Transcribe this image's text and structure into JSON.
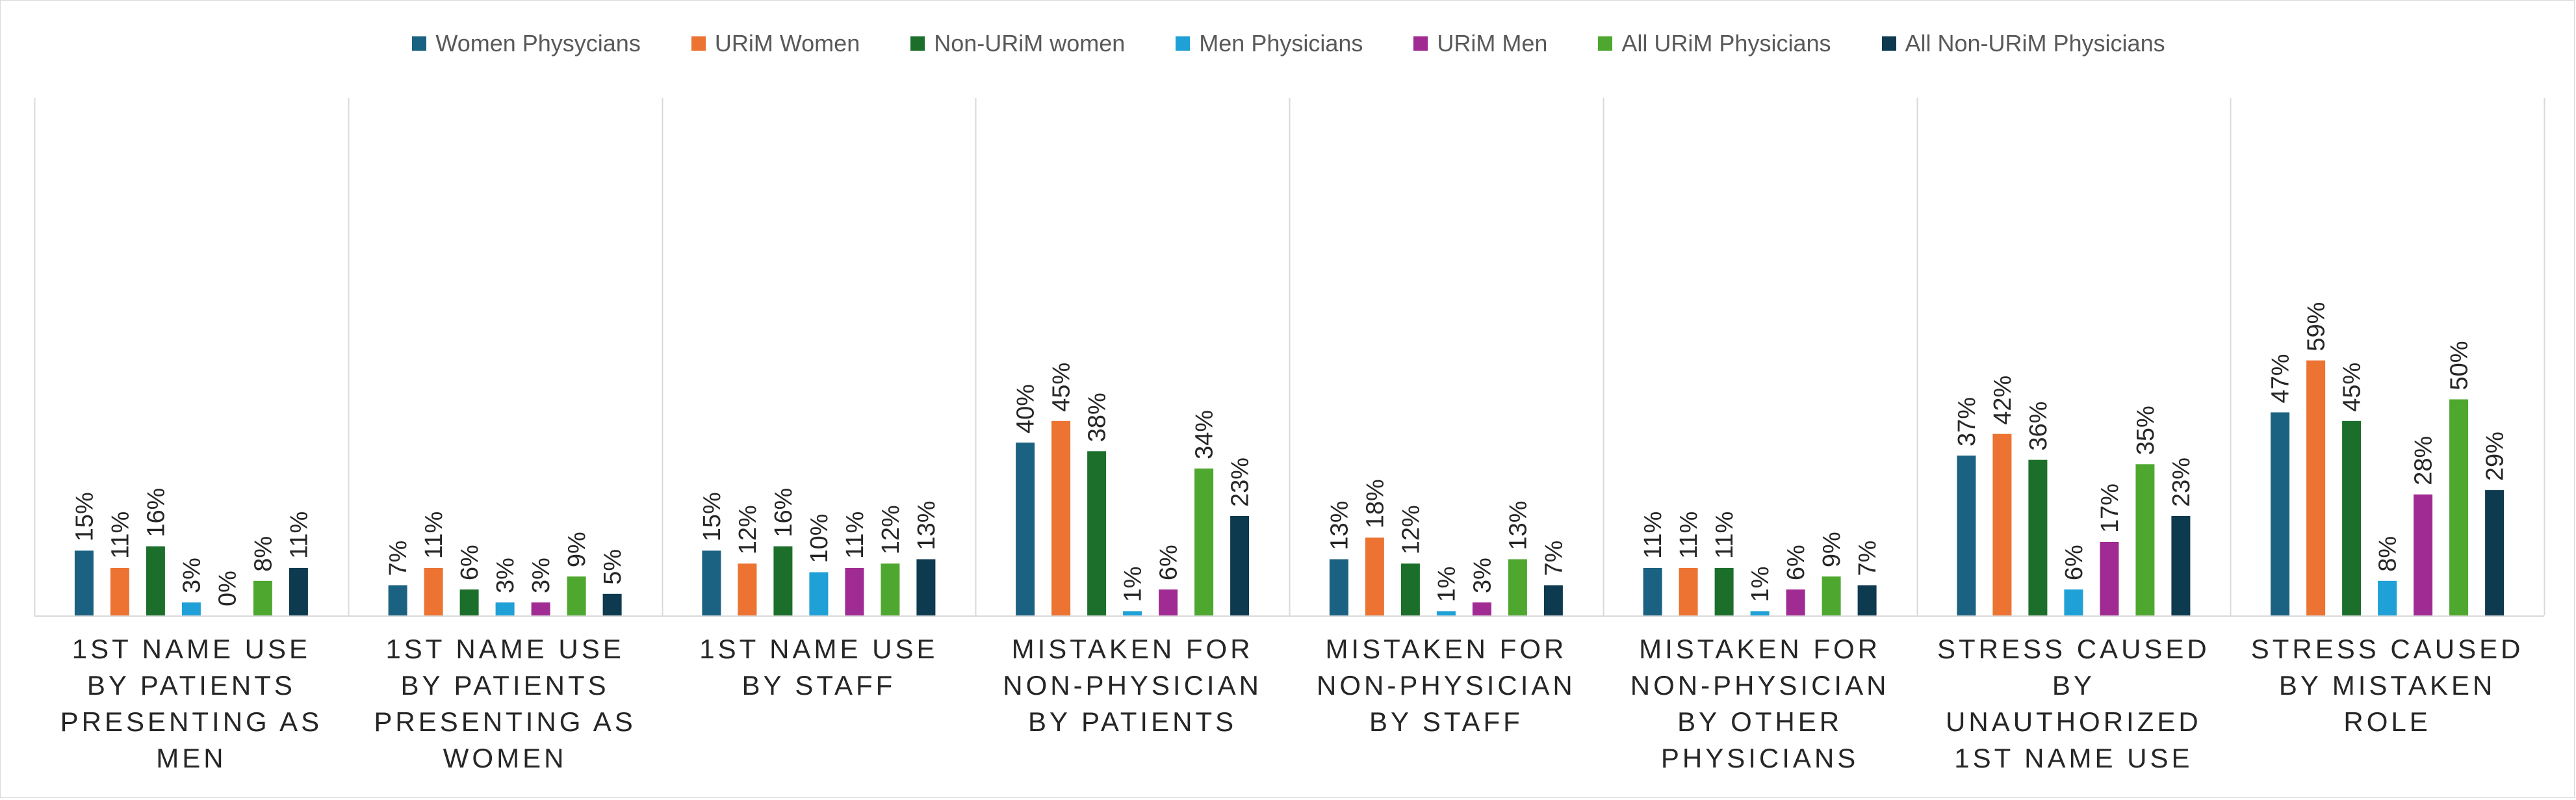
{
  "chart_data": {
    "type": "bar",
    "title": "",
    "xlabel": "",
    "ylabel": "",
    "ylim": [
      0,
      60
    ],
    "grid": false,
    "legend_position": "top",
    "categories": [
      "1st Name Use by Patients Presenting as Men",
      "1st Name Use by Patients Presenting as Women",
      "1st Name Use by Staff",
      "Mistaken for Non-Physician by Patients",
      "Mistaken for Non-Physician by Staff",
      "Mistaken for Non-Physician by Other Physicians",
      "Stress Caused by Unauthorized 1st Name Use",
      "Stress Caused by Mistaken Role"
    ],
    "series": [
      {
        "name": "Women Physycians",
        "color": "#1a6182",
        "values": [
          15,
          7,
          15,
          40,
          13,
          11,
          37,
          47
        ],
        "labels": [
          "15%",
          "7%",
          "15%",
          "40%",
          "13%",
          "11%",
          "37%",
          "47%"
        ]
      },
      {
        "name": "URiM Women",
        "color": "#ec7331",
        "values": [
          11,
          11,
          12,
          45,
          18,
          11,
          42,
          59
        ],
        "labels": [
          "11%",
          "11%",
          "12%",
          "45%",
          "18%",
          "11%",
          "42%",
          "59%"
        ]
      },
      {
        "name": "Non-URiM women",
        "color": "#1b6f2a",
        "values": [
          16,
          6,
          16,
          38,
          12,
          11,
          36,
          45
        ],
        "labels": [
          "16%",
          "6%",
          "16%",
          "38%",
          "12%",
          "11%",
          "36%",
          "45%"
        ]
      },
      {
        "name": "Men Physicians",
        "color": "#1fa0d6",
        "values": [
          3,
          3,
          10,
          1,
          1,
          1,
          6,
          8
        ],
        "labels": [
          "3%",
          "3%",
          "10%",
          "1%",
          "1%",
          "1%",
          "6%",
          "8%"
        ]
      },
      {
        "name": "URiM Men",
        "color": "#a02b93",
        "values": [
          0,
          3,
          11,
          6,
          3,
          6,
          17,
          28
        ],
        "labels": [
          "0%",
          "3%",
          "11%",
          "6%",
          "3%",
          "6%",
          "17%",
          "28%"
        ]
      },
      {
        "name": "All URiM Physicians",
        "color": "#4ea72e",
        "values": [
          8,
          9,
          12,
          34,
          13,
          9,
          35,
          50
        ],
        "labels": [
          "8%",
          "9%",
          "12%",
          "34%",
          "13%",
          "9%",
          "35%",
          "50%"
        ]
      },
      {
        "name": "All Non-URiM Physicians",
        "color": "#0e3a50",
        "values": [
          11,
          5,
          13,
          23,
          7,
          7,
          23,
          29
        ],
        "labels": [
          "11%",
          "5%",
          "13%",
          "23%",
          "7%",
          "7%",
          "23%",
          "29%"
        ]
      }
    ]
  }
}
